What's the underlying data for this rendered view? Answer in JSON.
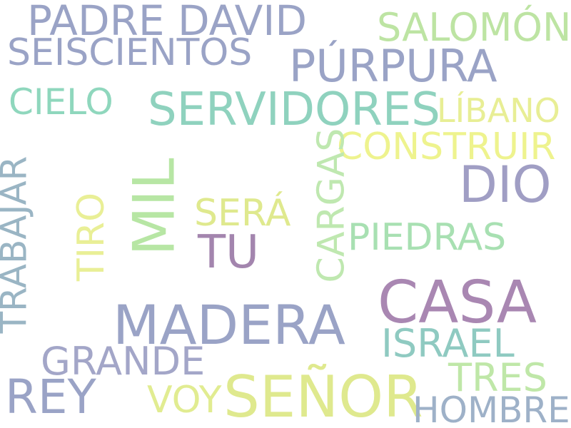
{
  "cloud": {
    "words": [
      {
        "text": "PADRE DAVID",
        "color": "#9aa3c6"
      },
      {
        "text": "SEISCIENTOS",
        "color": "#9aa3c6"
      },
      {
        "text": "SALOMÓN",
        "color": "#bde4a3"
      },
      {
        "text": "PÚRPURA",
        "color": "#9aa3c6"
      },
      {
        "text": "CIELO",
        "color": "#8fd7bd"
      },
      {
        "text": "SERVIDORES",
        "color": "#8fd2be"
      },
      {
        "text": "LÍBANO",
        "color": "#e8ee95"
      },
      {
        "text": "CONSTRUIR",
        "color": "#eef38e"
      },
      {
        "text": "DIO",
        "color": "#a09ec4"
      },
      {
        "text": "SERÁ",
        "color": "#dfe98e"
      },
      {
        "text": "TU",
        "color": "#a385ae"
      },
      {
        "text": "PIEDRAS",
        "color": "#a8e0b2"
      },
      {
        "text": "CASA",
        "color": "#a987b2"
      },
      {
        "text": "MADERA",
        "color": "#9aa3c6"
      },
      {
        "text": "ISRAEL",
        "color": "#8fcac1"
      },
      {
        "text": "GRANDE",
        "color": "#a3a6c8"
      },
      {
        "text": "TRES",
        "color": "#bfe7a8"
      },
      {
        "text": "REY",
        "color": "#9aa3c6"
      },
      {
        "text": "VOY",
        "color": "#e1ec91"
      },
      {
        "text": "SEÑOR",
        "color": "#dfe98e"
      },
      {
        "text": "HOMBRE",
        "color": "#9eb1c8"
      },
      {
        "text": "TRABAJAR",
        "color": "#9ab5c4"
      },
      {
        "text": "MIL",
        "color": "#b7e6a4"
      },
      {
        "text": "TIRO",
        "color": "#e9ef96"
      },
      {
        "text": "CARGAS",
        "color": "#bfe8b0"
      }
    ]
  }
}
